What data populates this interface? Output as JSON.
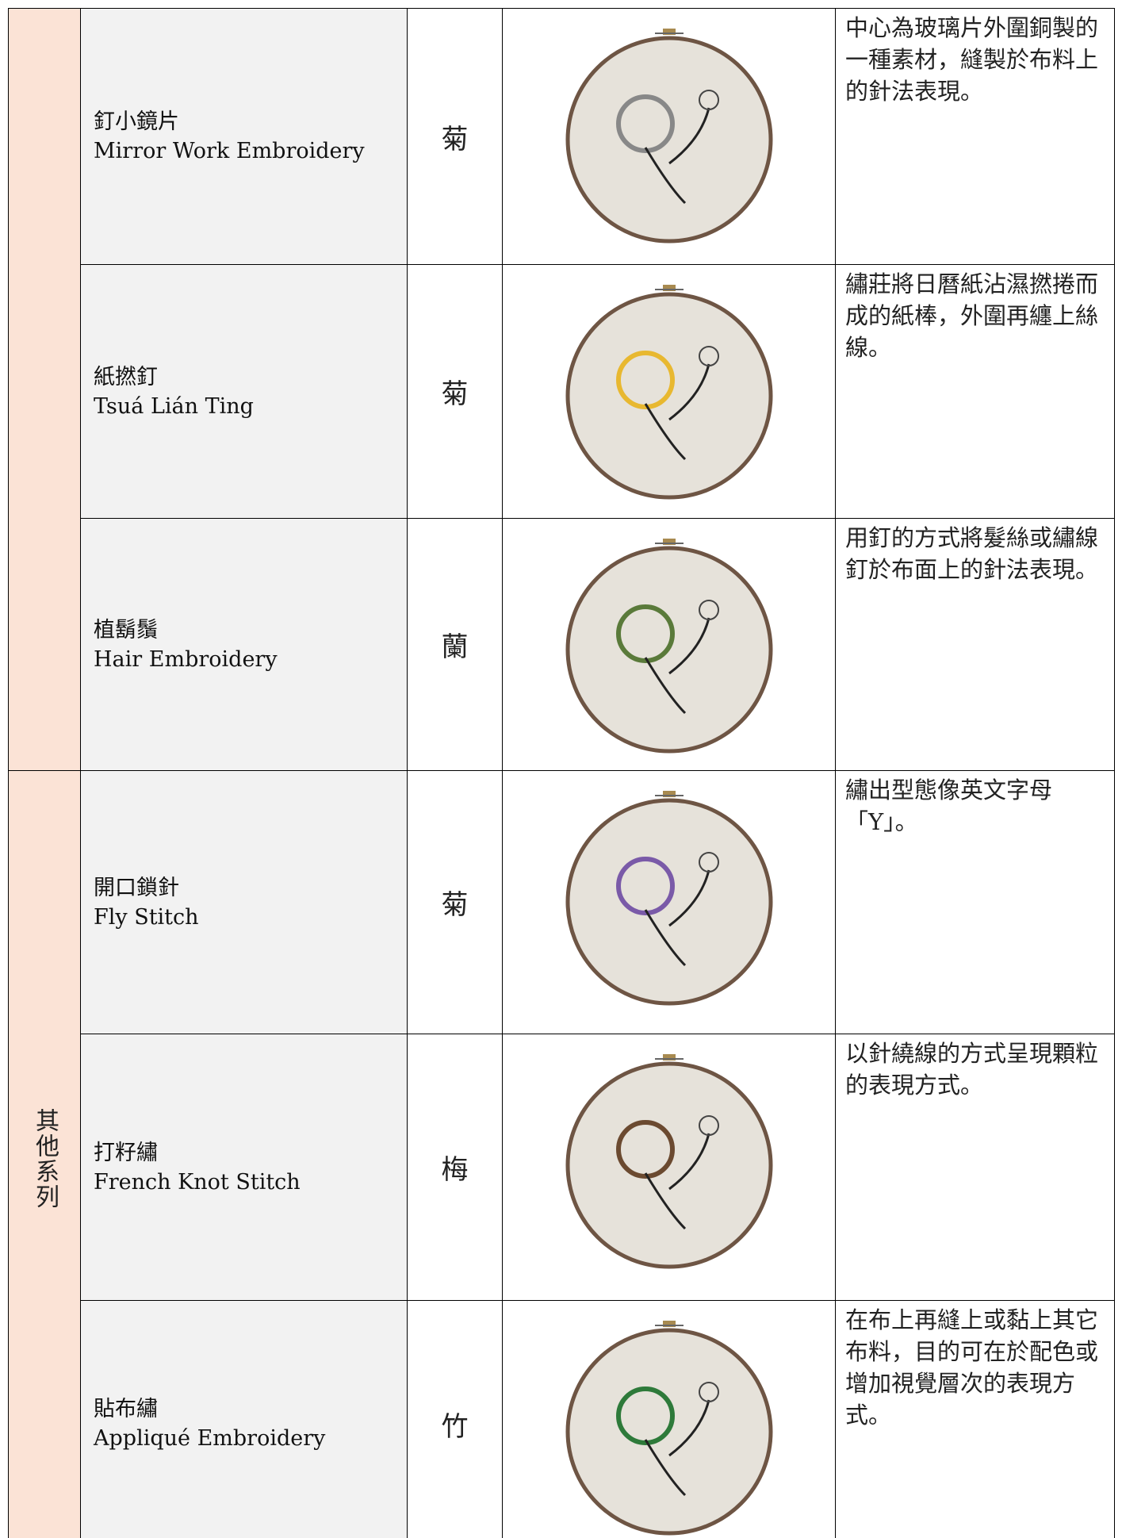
{
  "table": {
    "groups": [
      {
        "label": "其他系列"
      }
    ],
    "rows": [
      {
        "name_zh": "釘小鏡片",
        "name_en": "Mirror Work Embroidery",
        "flower": "菊",
        "description": "中心為玻璃片外圍銅製的一種素材，縫製於布料上的針法表現。"
      },
      {
        "name_zh": "紙撚釘",
        "name_en": "Tsuá Lián Ting",
        "flower": "菊",
        "description": "繡莊將日曆紙沾濕撚捲而成的紙棒，外圍再纏上絲線。"
      },
      {
        "name_zh": "植鬍鬚",
        "name_en": "Hair Embroidery",
        "flower": "蘭",
        "description": "用釘的方式將髮絲或繡線釘於布面上的針法表現。"
      },
      {
        "name_zh": "開口鎖針",
        "name_en": "Fly Stitch",
        "flower": "菊",
        "description": "繡出型態像英文字母「Y」。"
      },
      {
        "name_zh": "打籽繡",
        "name_en": "French Knot Stitch",
        "flower": "梅",
        "description": "以針繞線的方式呈現顆粒的表現方式。"
      },
      {
        "name_zh": "貼布繡",
        "name_en": "Appliqué Embroidery",
        "flower": "竹",
        "description": "在布上再縫上或黏上其它布料，目的可在於配色或增加視覺層次的表現方式。"
      }
    ]
  }
}
